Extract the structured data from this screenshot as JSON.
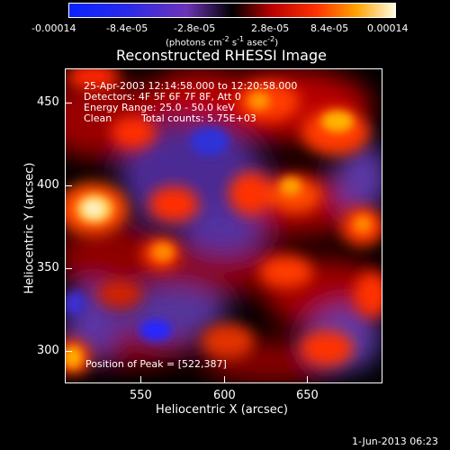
{
  "colors": {
    "accent": "#ffd34f",
    "low": "#1f22ff",
    "mid": "#7b3fb0",
    "high": "#ff9a00",
    "peak": "#fff1b5"
  },
  "colorbar": {
    "ticks": [
      "-0.00014",
      "-8.4e-05",
      "-2.8e-05",
      "2.8e-05",
      "8.4e-05",
      "0.00014"
    ],
    "units_line1": "(photons cm",
    "units_line2": "-2",
    "units_line3": " s",
    "units_line4": "-1",
    "units_line5": " asec",
    "units_line6": "-2",
    "units_line7": ")"
  },
  "chart_data": {
    "type": "heatmap",
    "title": "Reconstructed RHESSI Image",
    "xlabel": "Heliocentric X (arcsec)",
    "ylabel": "Heliocentric Y (arcsec)",
    "x_ticks": [
      "550",
      "600",
      "650"
    ],
    "y_ticks": [
      "300",
      "350",
      "400",
      "450"
    ],
    "xlim": [
      504,
      694
    ],
    "ylim": [
      289,
      479
    ],
    "annotations": {
      "time_range": "25-Apr-2003 12:14:58.000 to 12:20:58.000",
      "detectors": "Detectors: 4F 5F 6F 7F 8F, Att 0",
      "energy": "Energy Range: 25.0 - 50.0 keV",
      "clean": "Clean",
      "counts": "Total counts: 5.75E+03",
      "peak": "Position of Peak = [522,387]"
    }
  },
  "footer": {
    "date": "1-Jun-2013 06:23"
  }
}
